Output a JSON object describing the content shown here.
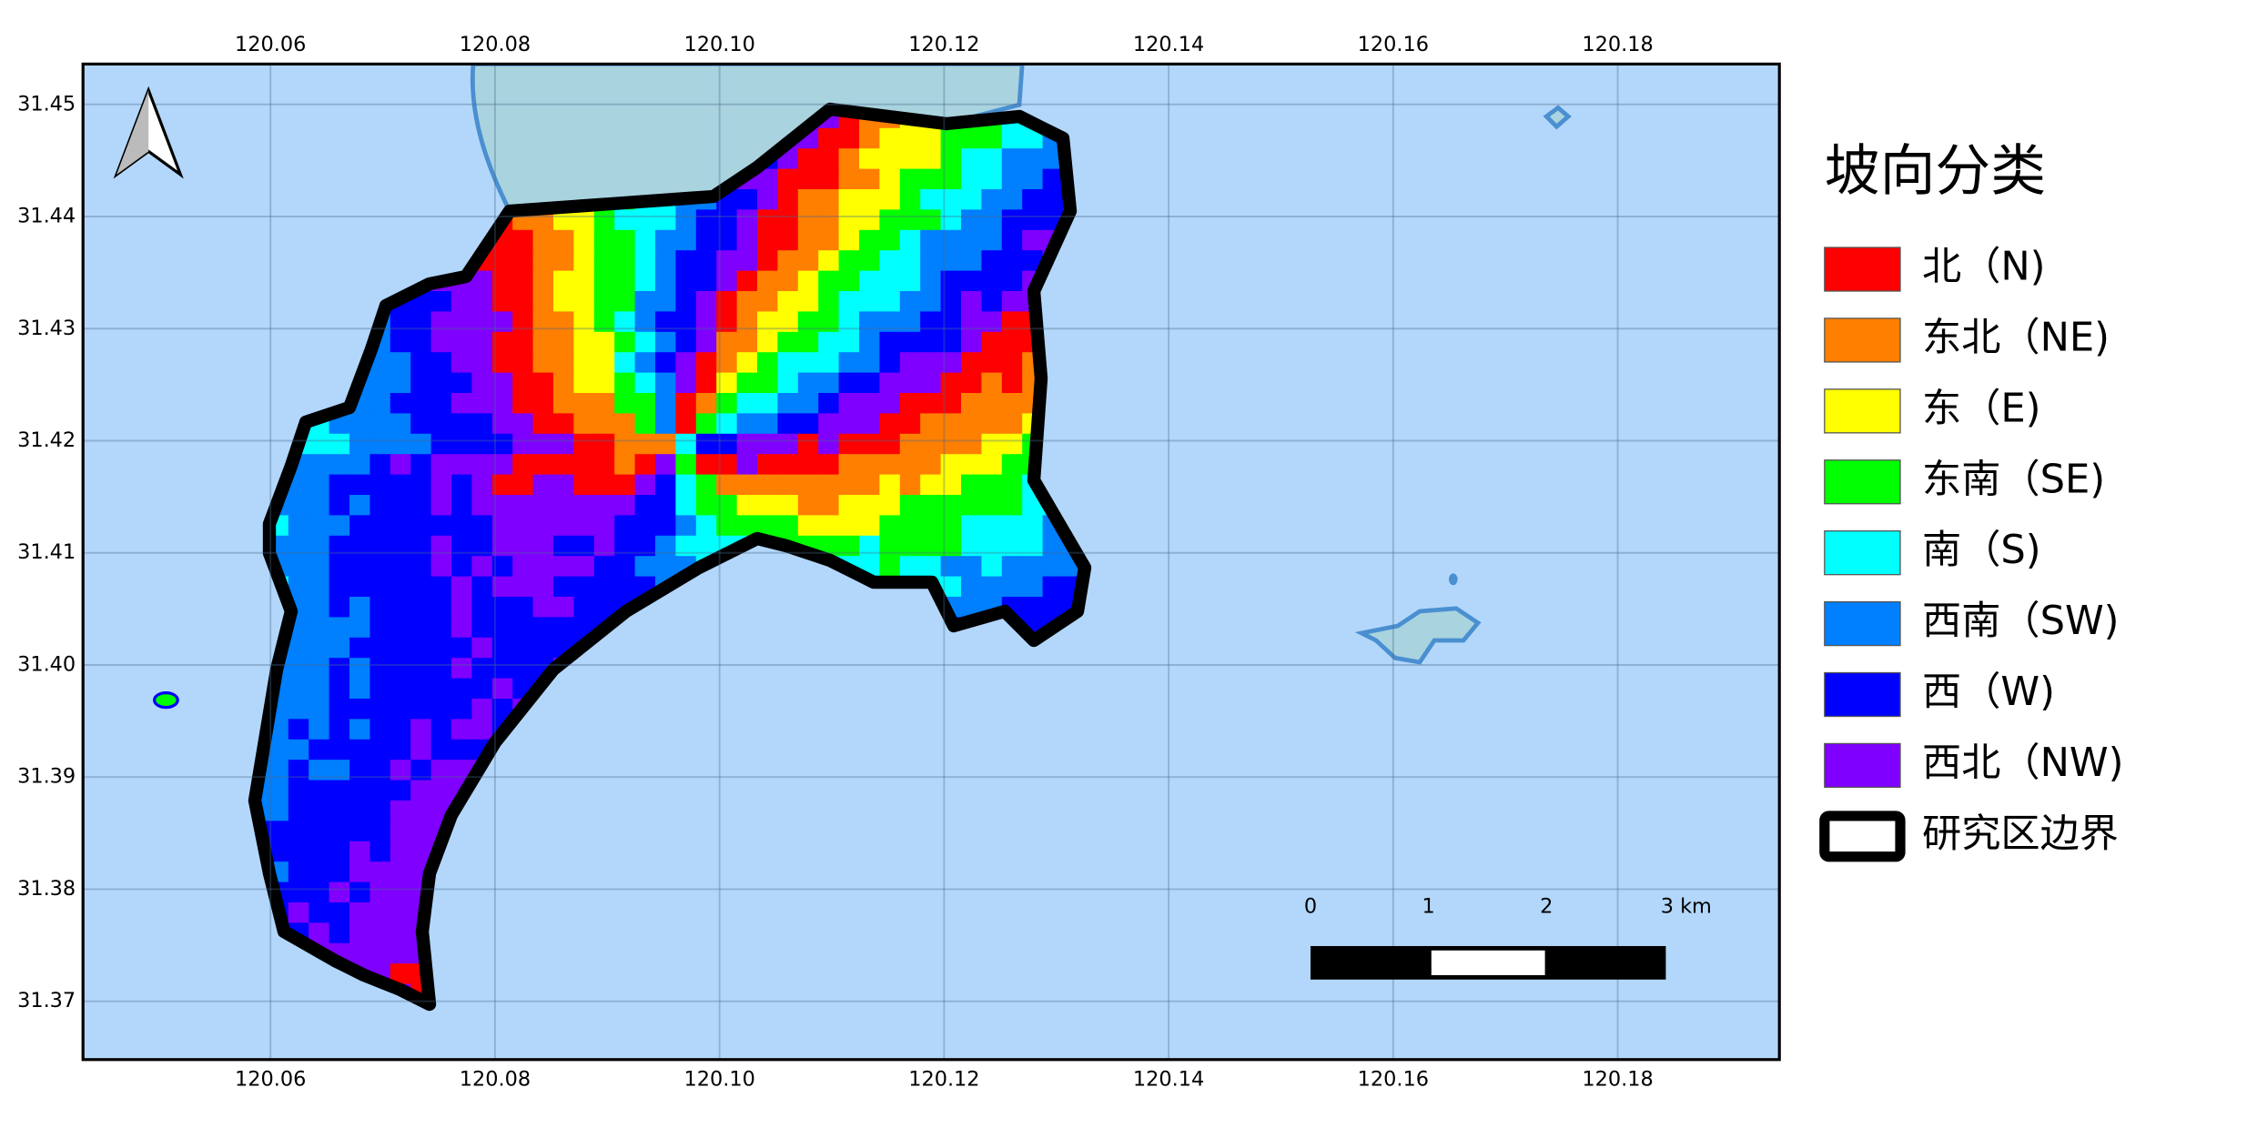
{
  "map": {
    "xlim": [
      120.0433,
      120.1944
    ],
    "ylim": [
      31.3648,
      31.4536
    ],
    "xticks": [
      120.06,
      120.08,
      {
        "value": 120.1,
        "label": "120.10"
      },
      120.12,
      120.14,
      120.16,
      120.18
    ],
    "yticks": [
      31.37,
      31.38,
      31.39,
      {
        "value": 31.4,
        "label": "31.40"
      },
      31.41,
      31.42,
      31.43,
      31.44,
      31.45
    ],
    "legend": {
      "title": "坡向分类",
      "items": [
        {
          "label": "北（N)",
          "color": "#ff0000"
        },
        {
          "label": "东北（NE)",
          "color": "#ff7f00"
        },
        {
          "label": "东（E)",
          "color": "#ffff00"
        },
        {
          "label": "东南（SE)",
          "color": "#00ff00"
        },
        {
          "label": "南（S)",
          "color": "#00ffff"
        },
        {
          "label": "西南（SW)",
          "color": "#007fff"
        },
        {
          "label": "西（W)",
          "color": "#0000ff"
        },
        {
          "label": "西北（NW)",
          "color": "#7f00ff"
        }
      ],
      "boundary": "研究区边界"
    },
    "scalebar": [
      "0",
      "1",
      "2",
      "3 km"
    ]
  }
}
